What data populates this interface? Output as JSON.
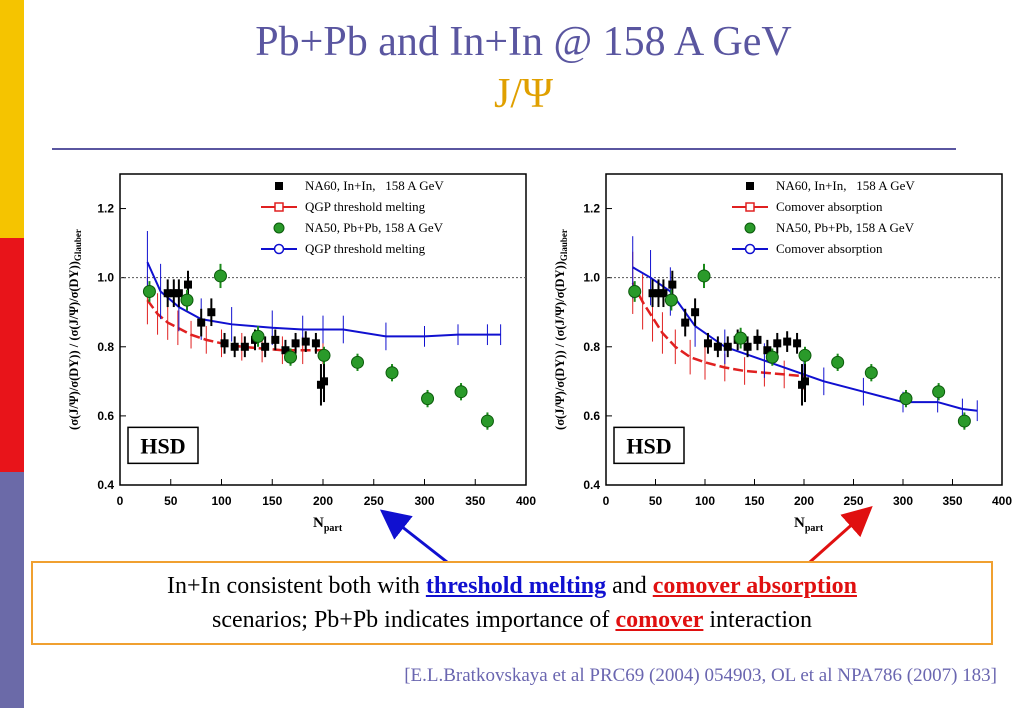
{
  "slide": {
    "title": "Pb+Pb and In+In @ 158 A GeV",
    "subtitle": "J/Ψ",
    "note_part1": "In+In consistent both with ",
    "note_hl1": "threshold melting",
    "note_part2": " and ",
    "note_hl2": "comover absorption",
    "note_part3": "scenarios; Pb+Pb indicates importance of ",
    "note_hl3": "comover",
    "note_part4": " interaction",
    "citation": "[E.L.Bratkovskaya et al PRC69 (2004) 054903, OL et al NPA786 (2007) 183]"
  },
  "chart_data": [
    {
      "type": "scatter",
      "ylabel": "(σ(J/Ψ)/σ(DY)) / (σ(J/Ψ)/σ(DY))Glauber",
      "xlabel": "Npart",
      "xlim": [
        0,
        400
      ],
      "ylim": [
        0.4,
        1.3
      ],
      "xticks": [
        0,
        50,
        100,
        150,
        200,
        250,
        300,
        350,
        400
      ],
      "yticks": [
        0.4,
        0.6,
        0.8,
        1.0,
        1.2
      ],
      "reference_line": 1.0,
      "label_box": "HSD",
      "legend": [
        {
          "name": "NA60, In+In,   158 A GeV",
          "marker": "square",
          "color": "#000000"
        },
        {
          "name": "QGP threshold melting",
          "marker": "open-square-line",
          "color": "#e02020"
        },
        {
          "name": "NA50, Pb+Pb, 158 A GeV",
          "marker": "circle",
          "color": "#1a8a1a"
        },
        {
          "name": "QGP threshold melting",
          "marker": "open-circle-line",
          "color": "#1010d0"
        }
      ],
      "series": [
        {
          "name": "NA60, In+In,   158 A GeV",
          "kind": "points",
          "color": "#000000",
          "x": [
            47,
            53,
            58,
            67,
            80,
            90,
            103,
            113,
            123,
            133,
            143,
            153,
            163,
            173,
            183,
            193,
            198,
            201
          ],
          "y": [
            0.955,
            0.955,
            0.955,
            0.98,
            0.87,
            0.9,
            0.81,
            0.8,
            0.8,
            0.82,
            0.8,
            0.82,
            0.79,
            0.81,
            0.815,
            0.81,
            0.69,
            0.7
          ],
          "err": [
            0.04,
            0.04,
            0.04,
            0.04,
            0.04,
            0.04,
            0.03,
            0.03,
            0.03,
            0.03,
            0.03,
            0.03,
            0.03,
            0.03,
            0.03,
            0.03,
            0.06,
            0.06
          ]
        },
        {
          "name": "NA50, Pb+Pb, 158 A GeV",
          "kind": "points",
          "color": "#1a8a1a",
          "x": [
            29,
            66,
            99,
            136,
            168,
            201,
            234,
            268,
            303,
            336,
            362
          ],
          "y": [
            0.96,
            0.935,
            1.005,
            0.83,
            0.77,
            0.775,
            0.755,
            0.725,
            0.65,
            0.67,
            0.585
          ],
          "err": [
            0.03,
            0.03,
            0.035,
            0.03,
            0.025,
            0.025,
            0.025,
            0.025,
            0.025,
            0.025,
            0.025
          ]
        },
        {
          "name": "QGP threshold melting",
          "kind": "line",
          "color": "#e02020",
          "x": [
            27,
            37,
            47,
            57,
            70,
            85,
            100,
            120,
            140,
            160,
            180,
            200
          ],
          "y": [
            0.935,
            0.895,
            0.87,
            0.855,
            0.835,
            0.82,
            0.81,
            0.8,
            0.795,
            0.79,
            0.79,
            0.79
          ],
          "err": [
            0.07,
            0.06,
            0.05,
            0.05,
            0.04,
            0.04,
            0.04,
            0.04,
            0.04,
            0.04,
            0.04,
            0.04
          ]
        },
        {
          "name": "QGP threshold melting",
          "kind": "line",
          "color": "#1010d0",
          "x": [
            27,
            40,
            58,
            80,
            110,
            150,
            180,
            200,
            220,
            262,
            300,
            333,
            362,
            375
          ],
          "y": [
            1.045,
            0.96,
            0.915,
            0.88,
            0.865,
            0.855,
            0.85,
            0.85,
            0.85,
            0.83,
            0.83,
            0.835,
            0.835,
            0.835
          ],
          "err": [
            0.09,
            0.08,
            0.07,
            0.06,
            0.05,
            0.05,
            0.04,
            0.04,
            0.04,
            0.04,
            0.03,
            0.03,
            0.03,
            0.03
          ]
        }
      ]
    },
    {
      "type": "scatter",
      "ylabel": "(σ(J/Ψ)/σ(DY)) / (σ(J/Ψ)/σ(DY))Glauber",
      "xlabel": "Npart",
      "xlim": [
        0,
        400
      ],
      "ylim": [
        0.4,
        1.3
      ],
      "xticks": [
        0,
        50,
        100,
        150,
        200,
        250,
        300,
        350,
        400
      ],
      "yticks": [
        0.4,
        0.6,
        0.8,
        1.0,
        1.2
      ],
      "reference_line": 1.0,
      "label_box": "HSD",
      "legend": [
        {
          "name": "NA60, In+In,   158 A GeV",
          "marker": "square",
          "color": "#000000"
        },
        {
          "name": "Comover absorption",
          "marker": "open-square-line",
          "color": "#e02020"
        },
        {
          "name": "NA50, Pb+Pb, 158 A GeV",
          "marker": "circle",
          "color": "#1a8a1a"
        },
        {
          "name": "Comover absorption",
          "marker": "open-circle-line",
          "color": "#1010d0"
        }
      ],
      "series": [
        {
          "name": "NA60, In+In,   158 A GeV",
          "kind": "points",
          "color": "#000000",
          "x": [
            47,
            53,
            58,
            67,
            80,
            90,
            103,
            113,
            123,
            133,
            143,
            153,
            163,
            173,
            183,
            193,
            198,
            201
          ],
          "y": [
            0.955,
            0.955,
            0.955,
            0.98,
            0.87,
            0.9,
            0.81,
            0.8,
            0.8,
            0.82,
            0.8,
            0.82,
            0.79,
            0.81,
            0.815,
            0.81,
            0.69,
            0.7
          ],
          "err": [
            0.04,
            0.04,
            0.04,
            0.04,
            0.04,
            0.04,
            0.03,
            0.03,
            0.03,
            0.03,
            0.03,
            0.03,
            0.03,
            0.03,
            0.03,
            0.03,
            0.06,
            0.06
          ]
        },
        {
          "name": "NA50, Pb+Pb, 158 A GeV",
          "kind": "points",
          "color": "#1a8a1a",
          "x": [
            29,
            66,
            99,
            136,
            168,
            201,
            234,
            268,
            303,
            336,
            362
          ],
          "y": [
            0.96,
            0.935,
            1.005,
            0.825,
            0.77,
            0.775,
            0.755,
            0.725,
            0.65,
            0.67,
            0.585
          ],
          "err": [
            0.03,
            0.03,
            0.035,
            0.03,
            0.025,
            0.025,
            0.025,
            0.025,
            0.025,
            0.025,
            0.025
          ]
        },
        {
          "name": "Comover absorption",
          "kind": "line",
          "color": "#e02020",
          "x": [
            27,
            37,
            47,
            57,
            70,
            85,
            100,
            120,
            140,
            160,
            180,
            200
          ],
          "y": [
            0.985,
            0.93,
            0.885,
            0.84,
            0.8,
            0.77,
            0.755,
            0.74,
            0.73,
            0.725,
            0.72,
            0.715
          ],
          "err": [
            0.09,
            0.08,
            0.07,
            0.06,
            0.05,
            0.05,
            0.05,
            0.04,
            0.04,
            0.04,
            0.04,
            0.04
          ]
        },
        {
          "name": "Comover absorption",
          "kind": "line",
          "color": "#1010d0",
          "x": [
            27,
            45,
            65,
            90,
            120,
            160,
            200,
            220,
            260,
            300,
            335,
            360,
            375
          ],
          "y": [
            1.03,
            1.0,
            0.96,
            0.86,
            0.8,
            0.76,
            0.72,
            0.7,
            0.67,
            0.64,
            0.64,
            0.62,
            0.615
          ],
          "err": [
            0.09,
            0.08,
            0.07,
            0.06,
            0.05,
            0.05,
            0.04,
            0.04,
            0.04,
            0.03,
            0.03,
            0.03,
            0.03
          ]
        }
      ]
    }
  ]
}
